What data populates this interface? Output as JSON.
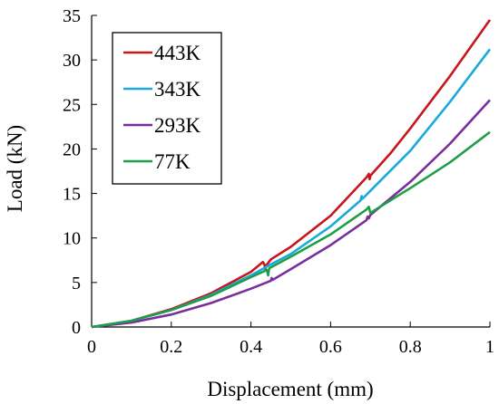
{
  "chart_data": {
    "type": "line",
    "title": "",
    "xlabel": "Displacement (mm)",
    "ylabel": "Load (kN)",
    "xlim": [
      0,
      1
    ],
    "ylim": [
      0,
      35
    ],
    "xticks": [
      0,
      0.2,
      0.4,
      0.6,
      0.8,
      1
    ],
    "xtick_labels": [
      "0",
      "0.2",
      "0.4",
      "0.6",
      "0.8",
      "1"
    ],
    "yticks": [
      0,
      5,
      10,
      15,
      20,
      25,
      30,
      35
    ],
    "ytick_labels": [
      "0",
      "5",
      "10",
      "15",
      "20",
      "25",
      "30",
      "35"
    ],
    "grid": false,
    "legend_position": "top-left",
    "series": [
      {
        "name": "443K",
        "color": "#c8161d",
        "points": [
          [
            0,
            0
          ],
          [
            0.1,
            0.7
          ],
          [
            0.2,
            2.0
          ],
          [
            0.3,
            3.8
          ],
          [
            0.4,
            6.2
          ],
          [
            0.43,
            7.3
          ],
          [
            0.434,
            7.0
          ],
          [
            0.436,
            6.5
          ],
          [
            0.438,
            6.9
          ],
          [
            0.45,
            7.6
          ],
          [
            0.5,
            9.0
          ],
          [
            0.6,
            12.5
          ],
          [
            0.69,
            16.8
          ],
          [
            0.696,
            17.2
          ],
          [
            0.698,
            16.6
          ],
          [
            0.7,
            17.0
          ],
          [
            0.75,
            19.5
          ],
          [
            0.8,
            22.3
          ],
          [
            0.9,
            28.2
          ],
          [
            1.0,
            34.5
          ]
        ]
      },
      {
        "name": "343K",
        "color": "#1ba9dc",
        "points": [
          [
            0,
            0
          ],
          [
            0.1,
            0.7
          ],
          [
            0.2,
            1.9
          ],
          [
            0.3,
            3.6
          ],
          [
            0.4,
            5.8
          ],
          [
            0.44,
            6.8
          ],
          [
            0.5,
            8.2
          ],
          [
            0.6,
            11.3
          ],
          [
            0.675,
            14.2
          ],
          [
            0.678,
            14.7
          ],
          [
            0.68,
            14.4
          ],
          [
            0.7,
            15.3
          ],
          [
            0.8,
            19.8
          ],
          [
            0.9,
            25.3
          ],
          [
            1.0,
            31.2
          ]
        ]
      },
      {
        "name": "293K",
        "color": "#7a2e9a",
        "points": [
          [
            0,
            0
          ],
          [
            0.1,
            0.5
          ],
          [
            0.2,
            1.4
          ],
          [
            0.3,
            2.7
          ],
          [
            0.4,
            4.3
          ],
          [
            0.45,
            5.2
          ],
          [
            0.452,
            5.5
          ],
          [
            0.455,
            5.3
          ],
          [
            0.5,
            6.5
          ],
          [
            0.6,
            9.2
          ],
          [
            0.69,
            12.0
          ],
          [
            0.693,
            12.4
          ],
          [
            0.696,
            12.2
          ],
          [
            0.7,
            12.6
          ],
          [
            0.8,
            16.3
          ],
          [
            0.9,
            20.6
          ],
          [
            1.0,
            25.5
          ]
        ]
      },
      {
        "name": "77K",
        "color": "#1e9e48",
        "points": [
          [
            0,
            0
          ],
          [
            0.1,
            0.7
          ],
          [
            0.2,
            1.9
          ],
          [
            0.3,
            3.5
          ],
          [
            0.4,
            5.6
          ],
          [
            0.44,
            6.4
          ],
          [
            0.443,
            5.8
          ],
          [
            0.446,
            6.6
          ],
          [
            0.5,
            7.9
          ],
          [
            0.6,
            10.4
          ],
          [
            0.69,
            13.2
          ],
          [
            0.696,
            13.5
          ],
          [
            0.7,
            12.8
          ],
          [
            0.71,
            13.1
          ],
          [
            0.8,
            15.6
          ],
          [
            0.9,
            18.5
          ],
          [
            1.0,
            21.9
          ]
        ]
      }
    ]
  }
}
